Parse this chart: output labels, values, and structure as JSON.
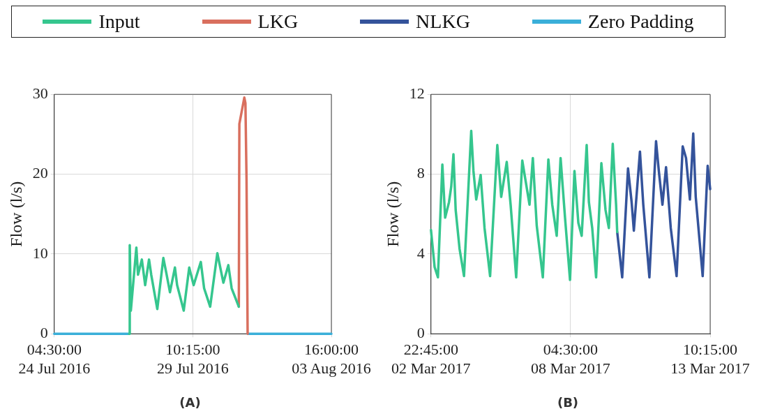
{
  "chart_data": [
    {
      "type": "line",
      "ylabel": "Flow (l/s)",
      "ylim": [
        0,
        30
      ],
      "yticks": [
        0,
        10,
        20,
        30
      ],
      "xlim": [
        "2016-07-24T04:30",
        "2016-08-03T16:00"
      ],
      "xticks": [
        {
          "value": "2016-07-24T04:30",
          "label": "04:30:00\n24 Jul 2016"
        },
        {
          "value": "2016-07-29T10:15",
          "label": "10:15:00\n29 Jul 2016"
        },
        {
          "value": "2016-08-03T16:00",
          "label": "16:00:00\n03 Aug 2016"
        }
      ],
      "grid": true,
      "legend": "top",
      "annotations": [
        "(A)"
      ],
      "series": [
        {
          "name": "Input",
          "color": "#35c68e",
          "x": [
            "2016-07-27T00:30",
            "2016-07-27T01:00",
            "2016-07-27T02:00",
            "2016-07-27T07:00",
            "2016-07-27T08:30",
            "2016-07-27T12:00",
            "2016-07-27T15:00",
            "2016-07-27T18:30",
            "2016-07-27T20:30",
            "2016-07-28T02:00",
            "2016-07-28T07:30",
            "2016-07-28T10:30",
            "2016-07-28T13:30",
            "2016-07-28T18:00",
            "2016-07-28T20:00",
            "2016-07-29T02:00",
            "2016-07-29T07:00",
            "2016-07-29T11:00",
            "2016-07-29T17:30",
            "2016-07-29T20:30",
            "2016-07-30T02:00",
            "2016-07-30T08:30",
            "2016-07-30T14:00",
            "2016-07-30T18:30",
            "2016-07-30T21:30",
            "2016-07-31T04:00"
          ],
          "values": [
            0,
            11.1,
            2.9,
            10.8,
            7.4,
            9.3,
            6.1,
            9.3,
            7.4,
            3.1,
            9.5,
            7.4,
            5.2,
            8.3,
            6.1,
            2.9,
            8.3,
            6.1,
            9.0,
            5.7,
            3.4,
            10.1,
            6.4,
            8.6,
            5.7,
            3.4
          ]
        },
        {
          "name": "LKG",
          "color": "#d96f5e",
          "x": [
            "2016-07-31T04:00",
            "2016-07-31T04:30",
            "2016-07-31T09:00",
            "2016-07-31T10:00",
            "2016-07-31T11:00",
            "2016-07-31T12:00"
          ],
          "values": [
            3.4,
            26.3,
            29.6,
            28.9,
            19.4,
            0
          ]
        },
        {
          "name": "Zero Padding",
          "color": "#3aafd9",
          "x": [
            "2016-07-24T04:30",
            "2016-07-27T00:30",
            "2016-07-29T00:00",
            "2016-07-31T12:00",
            "2016-08-03T16:00"
          ],
          "values": [
            0,
            0,
            null,
            0,
            0
          ]
        }
      ]
    },
    {
      "type": "line",
      "ylabel": "Flow (l/s)",
      "ylim": [
        0,
        12
      ],
      "yticks": [
        0,
        4,
        8,
        12
      ],
      "xlim": [
        "2017-03-02T22:45",
        "2017-03-13T10:15"
      ],
      "xticks": [
        {
          "value": "2017-03-02T22:45",
          "label": "22:45:00\n02 Mar 2017"
        },
        {
          "value": "2017-03-08T04:30",
          "label": "04:30:00\n08 Mar 2017"
        },
        {
          "value": "2017-03-13T10:15",
          "label": "10:15:00\n13 Mar 2017"
        }
      ],
      "grid": true,
      "legend": "top",
      "annotations": [
        "(B)"
      ],
      "series": [
        {
          "name": "Input",
          "color": "#35c68e",
          "x": [
            "2017-03-02T22:45",
            "2017-03-03T02:00",
            "2017-03-03T05:00",
            "2017-03-03T09:00",
            "2017-03-03T11:30",
            "2017-03-03T15:00",
            "2017-03-03T17:00",
            "2017-03-03T19:00",
            "2017-03-03T21:00",
            "2017-03-04T00:30",
            "2017-03-04T04:30",
            "2017-03-04T11:00",
            "2017-03-04T13:00",
            "2017-03-04T15:30",
            "2017-03-04T19:30",
            "2017-03-04T23:00",
            "2017-03-05T04:00",
            "2017-03-05T10:30",
            "2017-03-05T14:00",
            "2017-03-05T19:00",
            "2017-03-05T22:30",
            "2017-03-06T03:30",
            "2017-03-06T09:00",
            "2017-03-06T15:30",
            "2017-03-06T18:30",
            "2017-03-06T22:00",
            "2017-03-07T03:30",
            "2017-03-07T08:30",
            "2017-03-07T12:00",
            "2017-03-07T16:00",
            "2017-03-07T19:30",
            "2017-03-07T23:30",
            "2017-03-08T04:00",
            "2017-03-08T08:00",
            "2017-03-08T11:30",
            "2017-03-08T14:30",
            "2017-03-08T19:00",
            "2017-03-08T21:00",
            "2017-03-09T00:00",
            "2017-03-09T03:30",
            "2017-03-09T08:15",
            "2017-03-09T12:00",
            "2017-03-09T15:00",
            "2017-03-09T18:30",
            "2017-03-09T21:30",
            "2017-03-09T22:30"
          ],
          "values": [
            5.2,
            3.35,
            2.83,
            8.48,
            5.82,
            6.6,
            7.38,
            9.0,
            6.2,
            4.26,
            2.89,
            10.17,
            8.16,
            6.73,
            7.96,
            5.3,
            2.89,
            9.46,
            6.86,
            8.61,
            6.47,
            2.83,
            8.68,
            6.47,
            8.81,
            5.43,
            2.83,
            8.74,
            6.47,
            4.91,
            8.81,
            5.82,
            2.7,
            8.16,
            5.56,
            4.91,
            9.46,
            6.6,
            5.3,
            2.83,
            8.55,
            6.2,
            5.3,
            9.52,
            6.47,
            5.1
          ]
        },
        {
          "name": "NLKG",
          "color": "#34539b",
          "x": [
            "2017-03-09T22:30",
            "2017-03-10T03:00",
            "2017-03-10T08:15",
            "2017-03-10T11:30",
            "2017-03-10T13:30",
            "2017-03-10T19:00",
            "2017-03-10T22:00",
            "2017-03-11T03:30",
            "2017-03-11T09:30",
            "2017-03-11T12:00",
            "2017-03-11T15:15",
            "2017-03-11T18:30",
            "2017-03-11T22:45",
            "2017-03-12T04:00",
            "2017-03-12T09:30",
            "2017-03-12T12:30",
            "2017-03-12T16:00",
            "2017-03-12T19:00",
            "2017-03-12T21:15",
            "2017-03-13T03:30",
            "2017-03-13T08:00",
            "2017-03-13T10:15"
          ],
          "values": [
            5.1,
            2.83,
            8.29,
            6.6,
            5.17,
            9.13,
            6.47,
            2.83,
            9.65,
            8.16,
            6.47,
            8.35,
            5.3,
            2.89,
            9.39,
            8.81,
            6.73,
            10.04,
            6.86,
            2.89,
            8.42,
            7.25
          ]
        }
      ]
    }
  ]
}
